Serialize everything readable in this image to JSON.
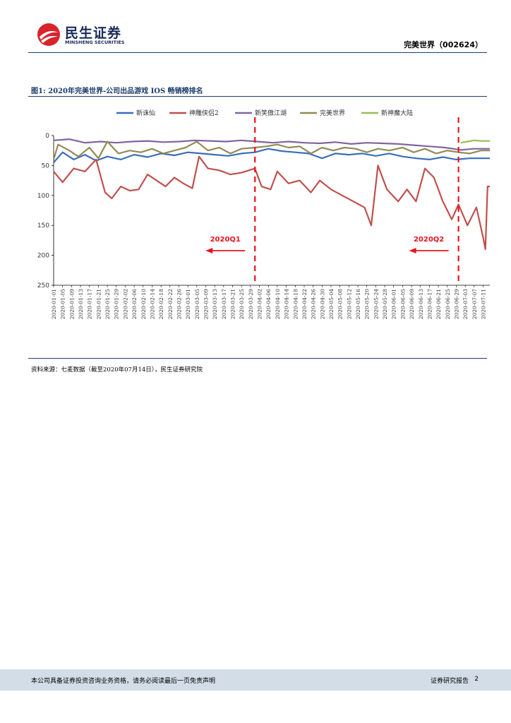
{
  "header": {
    "logo_cn": "民生证券",
    "logo_en": "MINSHENG SECURITIES",
    "title": "完美世界（002624）"
  },
  "figure": {
    "title": "图1: 2020年完美世界-公司出品游戏 IOS 畅销榜排名",
    "source": "资料来源：七麦数据（截至2020年07月14日），民生证券研究院"
  },
  "footer": {
    "disclaimer": "本公司具备证券投资咨询业务资格，请务必阅读最后一页免责声明",
    "report_type": "证券研究报告",
    "page": "2"
  },
  "chart_data": {
    "type": "line",
    "y_inverted": true,
    "ylim": [
      0,
      250
    ],
    "yticks": [
      0,
      50,
      100,
      150,
      200,
      250
    ],
    "x_start": "2020-01-01",
    "x_end": "2020-07-14",
    "x_tick_labels": [
      "2020-01-01",
      "2020-01-05",
      "2020-01-09",
      "2020-01-13",
      "2020-01-17",
      "2020-01-21",
      "2020-01-25",
      "2020-01-29",
      "2020-02-02",
      "2020-02-06",
      "2020-02-10",
      "2020-02-14",
      "2020-02-18",
      "2020-02-22",
      "2020-02-26",
      "2020-03-01",
      "2020-03-05",
      "2020-03-09",
      "2020-03-13",
      "2020-03-17",
      "2020-03-21",
      "2020-03-25",
      "2020-03-29",
      "2020-04-02",
      "2020-04-06",
      "2020-04-10",
      "2020-04-14",
      "2020-04-18",
      "2020-04-22",
      "2020-04-26",
      "2020-04-30",
      "2020-05-04",
      "2020-05-08",
      "2020-05-12",
      "2020-05-16",
      "2020-05-20",
      "2020-05-24",
      "2020-05-28",
      "2020-06-01",
      "2020-06-05",
      "2020-06-09",
      "2020-06-13",
      "2020-06-17",
      "2020-06-21",
      "2020-06-25",
      "2020-06-29",
      "2020-07-03",
      "2020-07-07",
      "2020-07-11"
    ],
    "legend_position": "top",
    "annotations": [
      {
        "text": "2020Q1",
        "at": "2020-03-31",
        "arrow": "left"
      },
      {
        "text": "2020Q2",
        "at": "2020-06-30",
        "arrow": "left"
      }
    ],
    "series": [
      {
        "name": "新诛仙",
        "color": "#3a6fb7",
        "points": [
          [
            "2020-01-01",
            45
          ],
          [
            "2020-01-05",
            28
          ],
          [
            "2020-01-10",
            40
          ],
          [
            "2020-01-15",
            32
          ],
          [
            "2020-01-20",
            42
          ],
          [
            "2020-01-25",
            35
          ],
          [
            "2020-01-31",
            40
          ],
          [
            "2020-02-06",
            32
          ],
          [
            "2020-02-12",
            36
          ],
          [
            "2020-02-18",
            30
          ],
          [
            "2020-02-24",
            33
          ],
          [
            "2020-03-01",
            28
          ],
          [
            "2020-03-07",
            30
          ],
          [
            "2020-03-13",
            32
          ],
          [
            "2020-03-19",
            34
          ],
          [
            "2020-03-25",
            30
          ],
          [
            "2020-03-31",
            28
          ],
          [
            "2020-04-06",
            22
          ],
          [
            "2020-04-12",
            26
          ],
          [
            "2020-04-18",
            28
          ],
          [
            "2020-04-24",
            30
          ],
          [
            "2020-04-30",
            38
          ],
          [
            "2020-05-06",
            30
          ],
          [
            "2020-05-12",
            32
          ],
          [
            "2020-05-18",
            30
          ],
          [
            "2020-05-24",
            34
          ],
          [
            "2020-05-30",
            30
          ],
          [
            "2020-06-05",
            35
          ],
          [
            "2020-06-11",
            38
          ],
          [
            "2020-06-17",
            40
          ],
          [
            "2020-06-23",
            36
          ],
          [
            "2020-06-29",
            40
          ],
          [
            "2020-07-05",
            38
          ],
          [
            "2020-07-14",
            38
          ]
        ]
      },
      {
        "name": "神雕侠侣2",
        "color": "#c0504d",
        "points": [
          [
            "2020-01-01",
            60
          ],
          [
            "2020-01-05",
            78
          ],
          [
            "2020-01-10",
            55
          ],
          [
            "2020-01-15",
            60
          ],
          [
            "2020-01-20",
            40
          ],
          [
            "2020-01-24",
            95
          ],
          [
            "2020-01-27",
            105
          ],
          [
            "2020-01-31",
            85
          ],
          [
            "2020-02-04",
            92
          ],
          [
            "2020-02-08",
            90
          ],
          [
            "2020-02-12",
            65
          ],
          [
            "2020-02-16",
            75
          ],
          [
            "2020-02-20",
            85
          ],
          [
            "2020-02-24",
            70
          ],
          [
            "2020-02-28",
            80
          ],
          [
            "2020-03-03",
            88
          ],
          [
            "2020-03-06",
            35
          ],
          [
            "2020-03-10",
            55
          ],
          [
            "2020-03-15",
            58
          ],
          [
            "2020-03-20",
            65
          ],
          [
            "2020-03-25",
            62
          ],
          [
            "2020-03-31",
            55
          ],
          [
            "2020-04-03",
            85
          ],
          [
            "2020-04-07",
            90
          ],
          [
            "2020-04-10",
            60
          ],
          [
            "2020-04-15",
            80
          ],
          [
            "2020-04-20",
            75
          ],
          [
            "2020-04-25",
            95
          ],
          [
            "2020-04-29",
            75
          ],
          [
            "2020-05-04",
            90
          ],
          [
            "2020-05-09",
            100
          ],
          [
            "2020-05-14",
            110
          ],
          [
            "2020-05-19",
            120
          ],
          [
            "2020-05-22",
            150
          ],
          [
            "2020-05-25",
            50
          ],
          [
            "2020-05-29",
            90
          ],
          [
            "2020-06-03",
            110
          ],
          [
            "2020-06-07",
            90
          ],
          [
            "2020-06-11",
            110
          ],
          [
            "2020-06-15",
            55
          ],
          [
            "2020-06-19",
            70
          ],
          [
            "2020-06-23",
            110
          ],
          [
            "2020-06-27",
            140
          ],
          [
            "2020-06-30",
            115
          ],
          [
            "2020-07-04",
            150
          ],
          [
            "2020-07-08",
            120
          ],
          [
            "2020-07-11",
            170
          ],
          [
            "2020-07-12",
            190
          ],
          [
            "2020-07-13",
            85
          ],
          [
            "2020-07-14",
            85
          ]
        ]
      },
      {
        "name": "新笑傲江湖",
        "color": "#8064a2",
        "points": [
          [
            "2020-01-01",
            8
          ],
          [
            "2020-01-08",
            6
          ],
          [
            "2020-01-15",
            12
          ],
          [
            "2020-01-22",
            10
          ],
          [
            "2020-01-29",
            12
          ],
          [
            "2020-02-05",
            10
          ],
          [
            "2020-02-12",
            9
          ],
          [
            "2020-02-19",
            11
          ],
          [
            "2020-02-26",
            10
          ],
          [
            "2020-03-04",
            8
          ],
          [
            "2020-03-11",
            9
          ],
          [
            "2020-03-18",
            10
          ],
          [
            "2020-03-25",
            8
          ],
          [
            "2020-04-01",
            10
          ],
          [
            "2020-04-08",
            12
          ],
          [
            "2020-04-15",
            10
          ],
          [
            "2020-04-22",
            12
          ],
          [
            "2020-04-29",
            13
          ],
          [
            "2020-05-06",
            11
          ],
          [
            "2020-05-13",
            14
          ],
          [
            "2020-05-20",
            12
          ],
          [
            "2020-05-27",
            13
          ],
          [
            "2020-06-03",
            14
          ],
          [
            "2020-06-10",
            16
          ],
          [
            "2020-06-17",
            18
          ],
          [
            "2020-06-24",
            20
          ],
          [
            "2020-07-01",
            24
          ],
          [
            "2020-07-07",
            22
          ],
          [
            "2020-07-14",
            22
          ]
        ]
      },
      {
        "name": "完美世界",
        "color": "#948a54",
        "points": [
          [
            "2020-01-01",
            40
          ],
          [
            "2020-01-03",
            15
          ],
          [
            "2020-01-08",
            25
          ],
          [
            "2020-01-12",
            35
          ],
          [
            "2020-01-17",
            20
          ],
          [
            "2020-01-21",
            38
          ],
          [
            "2020-01-25",
            10
          ],
          [
            "2020-01-30",
            30
          ],
          [
            "2020-02-04",
            25
          ],
          [
            "2020-02-09",
            28
          ],
          [
            "2020-02-14",
            22
          ],
          [
            "2020-02-19",
            30
          ],
          [
            "2020-02-24",
            25
          ],
          [
            "2020-02-29",
            20
          ],
          [
            "2020-03-05",
            10
          ],
          [
            "2020-03-10",
            25
          ],
          [
            "2020-03-15",
            20
          ],
          [
            "2020-03-20",
            30
          ],
          [
            "2020-03-25",
            22
          ],
          [
            "2020-03-31",
            20
          ],
          [
            "2020-04-05",
            18
          ],
          [
            "2020-04-10",
            15
          ],
          [
            "2020-04-15",
            20
          ],
          [
            "2020-04-20",
            18
          ],
          [
            "2020-04-25",
            30
          ],
          [
            "2020-04-30",
            20
          ],
          [
            "2020-05-05",
            25
          ],
          [
            "2020-05-10",
            20
          ],
          [
            "2020-05-15",
            22
          ],
          [
            "2020-05-20",
            28
          ],
          [
            "2020-05-25",
            22
          ],
          [
            "2020-05-30",
            25
          ],
          [
            "2020-06-05",
            20
          ],
          [
            "2020-06-10",
            28
          ],
          [
            "2020-06-15",
            22
          ],
          [
            "2020-06-20",
            30
          ],
          [
            "2020-06-25",
            25
          ],
          [
            "2020-06-30",
            28
          ],
          [
            "2020-07-05",
            30
          ],
          [
            "2020-07-10",
            25
          ],
          [
            "2020-07-14",
            25
          ]
        ]
      },
      {
        "name": "新神魔大陆",
        "color": "#9bbb59",
        "points": [
          [
            "2020-07-01",
            12
          ],
          [
            "2020-07-04",
            10
          ],
          [
            "2020-07-07",
            8
          ],
          [
            "2020-07-10",
            9
          ],
          [
            "2020-07-14",
            9
          ]
        ]
      }
    ]
  }
}
